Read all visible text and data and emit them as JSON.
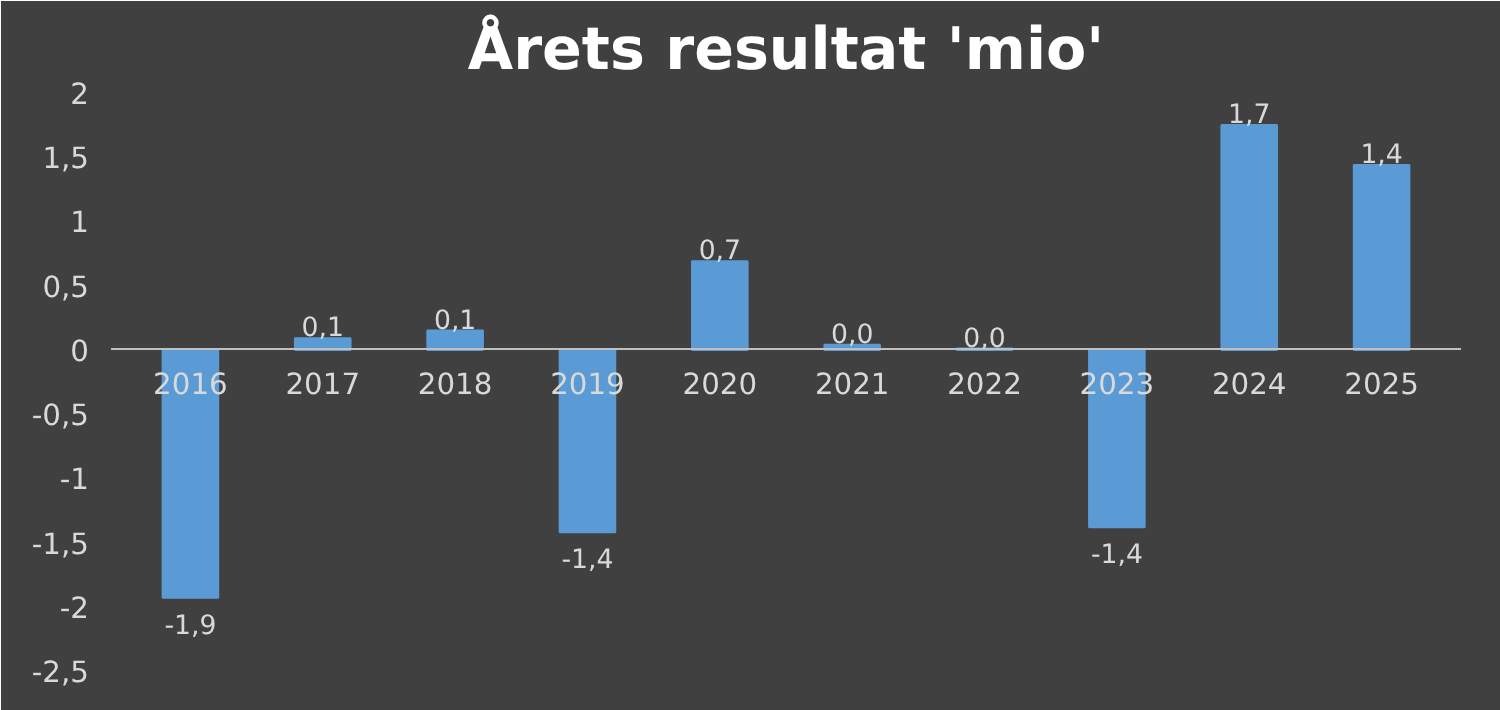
{
  "chart_data": {
    "type": "bar",
    "title": "Årets resultat 'mio'",
    "categories": [
      "2016",
      "2017",
      "2018",
      "2019",
      "2020",
      "2021",
      "2022",
      "2023",
      "2024",
      "2025"
    ],
    "values": [
      -1.93,
      0.09,
      0.15,
      -1.42,
      0.69,
      0.04,
      0.01,
      -1.38,
      1.75,
      1.44
    ],
    "value_labels": [
      "-1,9",
      "0,1",
      "0,1",
      "-1,4",
      "0,7",
      "0,0",
      "0,0",
      "-1,4",
      "1,7",
      "1,4"
    ],
    "color": "#5b9bd5",
    "ylim": [
      -2.5,
      2
    ],
    "yticks": [
      {
        "value": -2.5,
        "label": "-2,5"
      },
      -2,
      {
        "value": -1.5,
        "label": "-1,5"
      },
      -1,
      {
        "value": -0.5,
        "label": "-0,5"
      },
      0,
      {
        "value": 0.5,
        "label": "0,5"
      },
      1,
      {
        "value": 1.5,
        "label": "1,5"
      },
      2
    ],
    "grid": false
  }
}
